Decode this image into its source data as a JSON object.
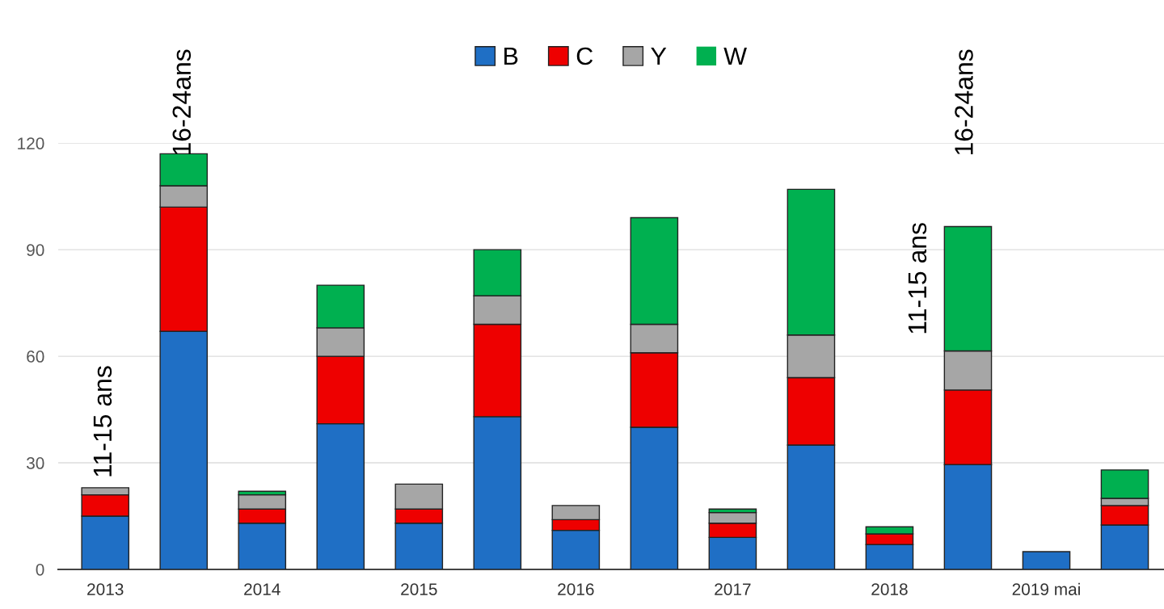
{
  "chart_data": {
    "type": "bar",
    "stacked": true,
    "categories": [
      "2013",
      null,
      "2014",
      null,
      "2015",
      null,
      "2016",
      null,
      "2017",
      null,
      "2018",
      null,
      "2019 mai",
      null
    ],
    "series": [
      {
        "name": "B",
        "color": "#1f6fc5",
        "values": [
          15,
          67,
          13,
          41,
          13,
          43,
          11,
          40,
          9,
          35,
          7,
          29.5,
          5,
          12.5
        ]
      },
      {
        "name": "C",
        "color": "#ee0000",
        "values": [
          6,
          35,
          4,
          19,
          4,
          26,
          3,
          21,
          4,
          19,
          3,
          21,
          0,
          5.5
        ]
      },
      {
        "name": "Y",
        "color": "#a6a6a6",
        "values": [
          2,
          6,
          4,
          8,
          7,
          8,
          4,
          8,
          3,
          12,
          0,
          11,
          0,
          2
        ]
      },
      {
        "name": "W",
        "color": "#00b050",
        "values": [
          0,
          9,
          1,
          12,
          0,
          13,
          0,
          30,
          1,
          41,
          2,
          35,
          0,
          8
        ]
      }
    ],
    "ylim": [
      0,
      120
    ],
    "yticks": [
      0,
      30,
      60,
      90,
      120
    ],
    "grid": "y",
    "legend": "top",
    "annotations": [
      "11-15 ans",
      "16-24ans",
      "11-15 ans",
      "16-24ans"
    ]
  }
}
